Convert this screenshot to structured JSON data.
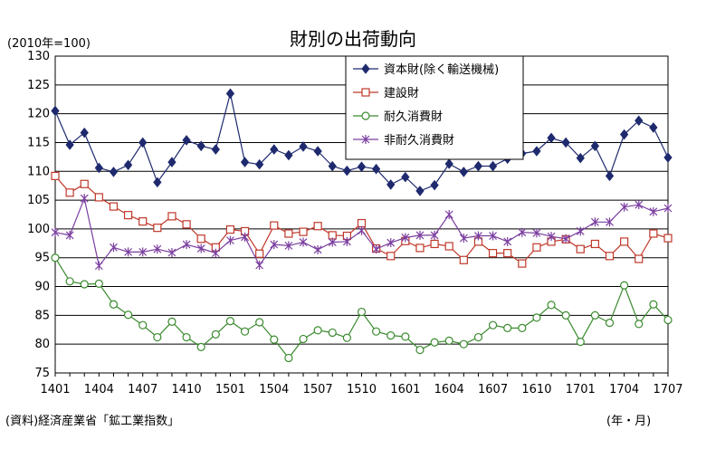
{
  "chart_data": {
    "type": "line",
    "title": "財別の出荷動向",
    "unit_note": "(2010年=100)",
    "source": "(資料)経済産業省「鉱工業指数」",
    "xlabel": "(年・月)",
    "ylim": [
      75,
      130
    ],
    "y_ticks": [
      "75",
      "80",
      "85",
      "90",
      "95",
      "100",
      "105",
      "110",
      "115",
      "120",
      "125",
      "130"
    ],
    "x_tick_labels": [
      "1401",
      "1404",
      "1407",
      "1410",
      "1501",
      "1504",
      "1507",
      "1510",
      "1601",
      "1604",
      "1607",
      "1610",
      "1701",
      "1704",
      "1707"
    ],
    "grid": true,
    "legend_position": "top-right",
    "x": [
      "1401",
      "1402",
      "1403",
      "1404",
      "1405",
      "1406",
      "1407",
      "1408",
      "1409",
      "1410",
      "1411",
      "1412",
      "1501",
      "1502",
      "1503",
      "1504",
      "1505",
      "1506",
      "1507",
      "1508",
      "1509",
      "1510",
      "1511",
      "1512",
      "1601",
      "1602",
      "1603",
      "1604",
      "1605",
      "1606",
      "1607",
      "1608",
      "1609",
      "1610",
      "1611",
      "1612",
      "1701",
      "1702",
      "1703",
      "1704",
      "1705",
      "1706",
      "1707"
    ],
    "series": [
      {
        "name": "資本財(除く輸送機械)",
        "color": "#1f2a6e",
        "marker": "diamond",
        "values": [
          120.5,
          114.6,
          116.7,
          110.6,
          109.9,
          111.1,
          115.0,
          108.1,
          111.6,
          115.4,
          114.4,
          113.8,
          123.5,
          111.6,
          111.2,
          113.8,
          112.8,
          114.3,
          113.5,
          110.9,
          110.1,
          110.8,
          110.4,
          107.7,
          109.0,
          106.6,
          107.6,
          111.3,
          109.9,
          110.9,
          110.9,
          112.2,
          113.1,
          113.5,
          115.8,
          115.0,
          112.3,
          114.4,
          109.2,
          116.4,
          118.8,
          117.6,
          112.4
        ]
      },
      {
        "name": "建設財",
        "color": "#c0392b",
        "marker": "square",
        "values": [
          109.2,
          106.3,
          107.8,
          105.5,
          103.9,
          102.4,
          101.3,
          100.2,
          102.2,
          100.8,
          98.3,
          96.8,
          99.9,
          99.6,
          95.7,
          100.6,
          99.2,
          99.5,
          100.5,
          98.9,
          98.8,
          101.0,
          96.6,
          95.3,
          97.9,
          96.7,
          97.4,
          97.0,
          94.6,
          97.8,
          95.8,
          95.8,
          94.0,
          96.8,
          97.8,
          98.2,
          96.5,
          97.4,
          95.3,
          97.8,
          94.8,
          99.2,
          98.4
        ]
      },
      {
        "name": "耐久消費財",
        "color": "#3a8a2e",
        "marker": "circle",
        "values": [
          95.0,
          90.9,
          90.4,
          90.5,
          86.9,
          85.1,
          83.3,
          81.2,
          83.9,
          81.2,
          79.5,
          81.7,
          84.0,
          82.2,
          83.8,
          80.8,
          77.6,
          80.9,
          82.4,
          82.0,
          81.1,
          85.6,
          82.2,
          81.5,
          81.3,
          79.0,
          80.3,
          80.6,
          80.0,
          81.2,
          83.3,
          82.8,
          82.8,
          84.6,
          86.8,
          85.0,
          80.4,
          85.0,
          83.7,
          90.2,
          83.5,
          86.9,
          84.2
        ]
      },
      {
        "name": "非耐久消費財",
        "color": "#7b3fa0",
        "marker": "x",
        "values": [
          99.4,
          98.9,
          105.3,
          93.6,
          96.8,
          96.0,
          96.0,
          96.5,
          95.9,
          97.3,
          96.6,
          95.8,
          98.0,
          98.6,
          93.7,
          97.3,
          97.1,
          97.7,
          96.4,
          97.7,
          97.8,
          99.7,
          96.5,
          97.6,
          98.5,
          98.9,
          98.9,
          102.5,
          98.4,
          98.8,
          98.8,
          97.8,
          99.4,
          99.3,
          98.7,
          98.3,
          99.6,
          101.2,
          101.2,
          103.8,
          104.2,
          103.0,
          103.6
        ]
      }
    ]
  }
}
